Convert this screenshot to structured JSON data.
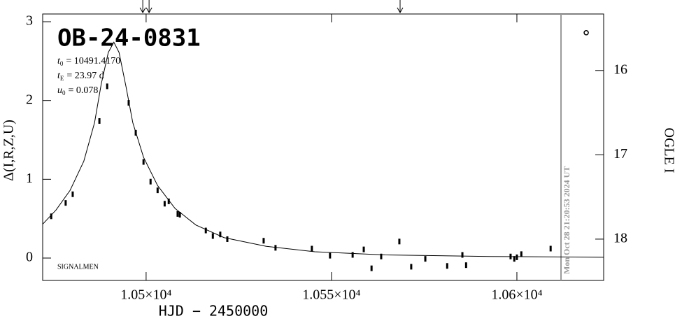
{
  "chart_data": {
    "type": "scatter",
    "title": "OB-24-0831",
    "params": [
      {
        "symbol": "t",
        "sub": "0",
        "text": "= 10491.4170"
      },
      {
        "symbol": "t",
        "sub": "E",
        "text": "= 23.97  d"
      },
      {
        "symbol": "u",
        "sub": "0",
        "text": "= 0.078"
      }
    ],
    "note": "SIGNALMEN",
    "x_label": "HJD − 2450000",
    "y_label": "Δ(I,R,Z,U)",
    "y2_label": "OGLE I",
    "xlim": [
      10472.1,
      10623.4
    ],
    "ylim": [
      -0.284,
      3.098
    ],
    "y2lim": [
      18.49,
      15.33
    ],
    "xticks": [
      {
        "value": 10500,
        "label": "1.05×10⁴"
      },
      {
        "value": 10550,
        "label": "1.055×10⁴"
      },
      {
        "value": 10600,
        "label": "1.06×10⁴"
      }
    ],
    "yticks": [
      0,
      1,
      2,
      3
    ],
    "y2ticks": [
      16,
      17,
      18
    ],
    "points": {
      "x": [
        10474.4,
        10478.3,
        10480.2,
        10487.4,
        10489.5,
        10495.3,
        10497.2,
        10499.3,
        10501.2,
        10503.1,
        10505.0,
        10506.1,
        10508.5,
        10509.1,
        10516.1,
        10518.0,
        10520.0,
        10521.9,
        10531.7,
        10534.9,
        10544.7,
        10549.6,
        10555.7,
        10558.7,
        10560.8,
        10563.4,
        10568.3,
        10571.5,
        10575.3,
        10581.2,
        10585.3,
        10586.3,
        10598.3,
        10599.3,
        10600.0,
        10601.2,
        10609.1
      ],
      "values": [
        0.53,
        0.7,
        0.81,
        1.74,
        2.18,
        1.97,
        1.59,
        1.22,
        0.97,
        0.86,
        0.69,
        0.72,
        0.56,
        0.55,
        0.35,
        0.28,
        0.3,
        0.24,
        0.22,
        0.13,
        0.12,
        0.03,
        0.04,
        0.11,
        -0.13,
        0.02,
        0.21,
        -0.11,
        -0.01,
        -0.1,
        0.04,
        -0.09,
        0.02,
        -0.01,
        0.01,
        0.05,
        0.12
      ]
    },
    "open_points": {
      "x": [
        10618.7
      ],
      "values": [
        2.86
      ]
    },
    "model": {
      "x": [
        10472.1,
        10475.7,
        10479.5,
        10483.2,
        10486.1,
        10487.9,
        10489.8,
        10491.3,
        10492.7,
        10494.6,
        10496.4,
        10499.3,
        10503.1,
        10507.8,
        10513.4,
        10521.0,
        10532.3,
        10545.5,
        10564.4,
        10592.7,
        10623.4
      ],
      "values": [
        0.43,
        0.61,
        0.86,
        1.23,
        1.72,
        2.21,
        2.61,
        2.74,
        2.61,
        2.17,
        1.72,
        1.28,
        0.92,
        0.63,
        0.42,
        0.26,
        0.15,
        0.08,
        0.04,
        0.02,
        0.01
      ]
    },
    "markers_x": [
      10499.1,
      10500.8,
      10568.5
    ],
    "now_x": 10611.9,
    "now_label": "Mon Oct 28 21:20:53 2024 UT"
  }
}
